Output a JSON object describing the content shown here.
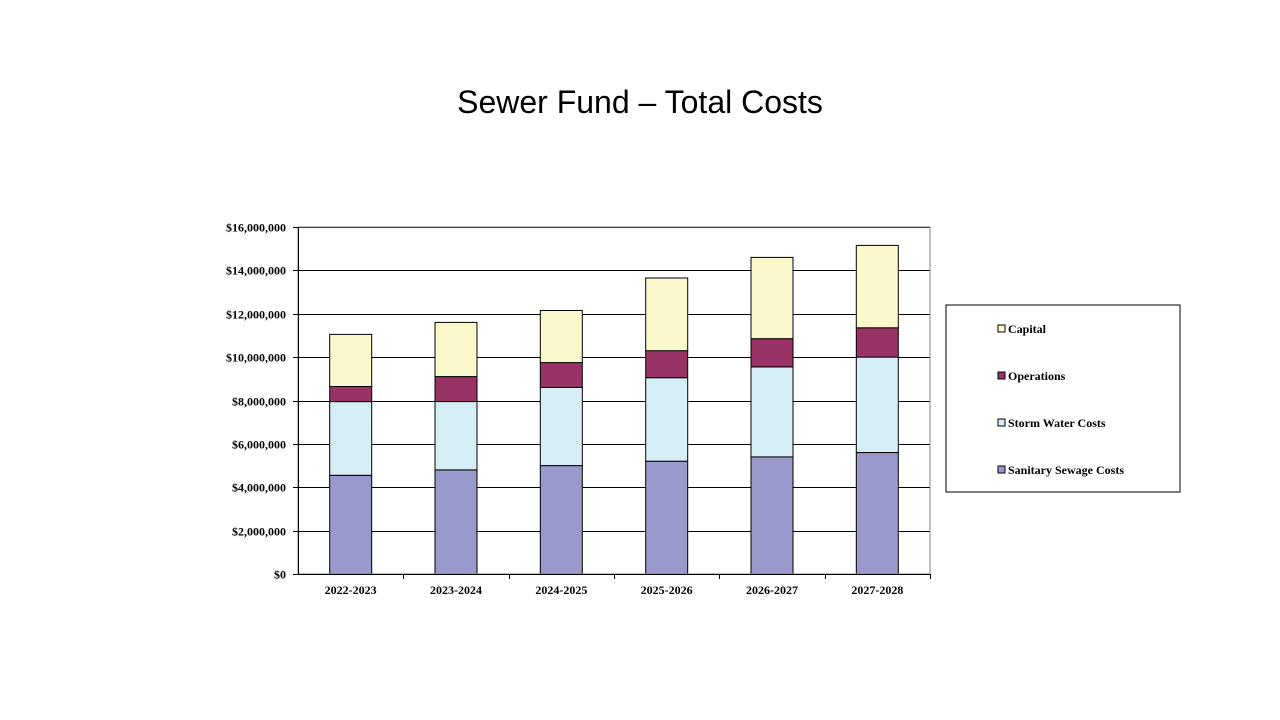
{
  "slide": {
    "title": "Sewer Fund – Total Costs"
  },
  "chart_data": {
    "type": "bar",
    "stacked": true,
    "title": "Sewer Fund – Total Costs",
    "xlabel": "",
    "ylabel": "",
    "ylim": [
      0,
      16000000
    ],
    "y_ticks": [
      0,
      2000000,
      4000000,
      6000000,
      8000000,
      10000000,
      12000000,
      14000000,
      16000000
    ],
    "y_tick_labels": [
      "$0",
      "$2,000,000",
      "$4,000,000",
      "$6,000,000",
      "$8,000,000",
      "$10,000,000",
      "$12,000,000",
      "$14,000,000",
      "$16,000,000"
    ],
    "grid": true,
    "legend_position": "right",
    "categories": [
      "2022-2023",
      "2023-2024",
      "2024-2025",
      "2025-2026",
      "2026-2027",
      "2027-2028"
    ],
    "series": [
      {
        "name": "Sanitary Sewage Costs",
        "color": "#9999cc",
        "values": [
          4550000,
          4800000,
          5000000,
          5200000,
          5400000,
          5600000
        ]
      },
      {
        "name": "Storm Water Costs",
        "color": "#d6eef5",
        "values": [
          3400000,
          3150000,
          3600000,
          3850000,
          4150000,
          4400000
        ]
      },
      {
        "name": "Operations",
        "color": "#993366",
        "values": [
          700000,
          1150000,
          1150000,
          1250000,
          1300000,
          1350000
        ]
      },
      {
        "name": "Capital",
        "color": "#fbf8cc",
        "values": [
          2400000,
          2500000,
          2400000,
          3350000,
          3750000,
          3800000
        ]
      }
    ],
    "legend_order": [
      "Capital",
      "Operations",
      "Storm Water Costs",
      "Sanitary Sewage Costs"
    ]
  }
}
